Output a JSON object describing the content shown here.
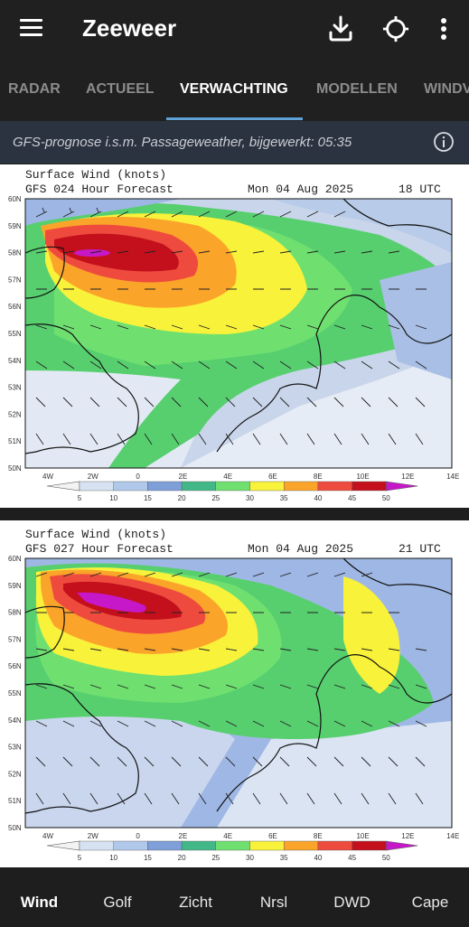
{
  "app": {
    "title": "Zeeweer"
  },
  "toolbar": {
    "icons": [
      "menu-icon",
      "download-icon",
      "locate-icon",
      "more-vert-icon"
    ]
  },
  "tabs": [
    {
      "label": "RADAR"
    },
    {
      "label": "ACTUEEL"
    },
    {
      "label": "VERWACHTING",
      "active": true
    },
    {
      "label": "MODELLEN"
    },
    {
      "label": "WINDV"
    }
  ],
  "info": {
    "text": "GFS-prognose i.s.m. Passageweather, bijgewerkt: 05:35"
  },
  "maps": [
    {
      "title": "Surface Wind (knots)",
      "forecast": "GFS 024 Hour Forecast",
      "date": "Mon 04 Aug 2025",
      "time": "18 UTC"
    },
    {
      "title": "Surface Wind (knots)",
      "forecast": "GFS 027 Hour Forecast",
      "date": "Mon 04 Aug 2025",
      "time": "21 UTC"
    }
  ],
  "axes": {
    "lat": [
      "60N",
      "59N",
      "58N",
      "57N",
      "56N",
      "55N",
      "54N",
      "53N",
      "52N",
      "51N",
      "50N"
    ],
    "lon": [
      "4W",
      "2W",
      "0",
      "2E",
      "4E",
      "6E",
      "8E",
      "10E",
      "12E",
      "14E"
    ]
  },
  "legend": {
    "ticks": [
      "5",
      "10",
      "15",
      "20",
      "25",
      "30",
      "35",
      "40",
      "45",
      "50"
    ],
    "colors": [
      "#f3f3f3",
      "#d6e2f2",
      "#b0c8ea",
      "#7f9fd9",
      "#42b889",
      "#6fe070",
      "#f9f23a",
      "#fba42a",
      "#ee4b3e",
      "#c4101c",
      "#c618c9"
    ]
  },
  "bottom_nav": [
    {
      "label": "Wind",
      "active": true
    },
    {
      "label": "Golf"
    },
    {
      "label": "Zicht"
    },
    {
      "label": "Nrsl"
    },
    {
      "label": "DWD"
    },
    {
      "label": "Cape"
    }
  ],
  "colors": {
    "tab_indicator": "#5fa3d9",
    "app_bar": "#202020",
    "info_bar": "#2c3340"
  }
}
